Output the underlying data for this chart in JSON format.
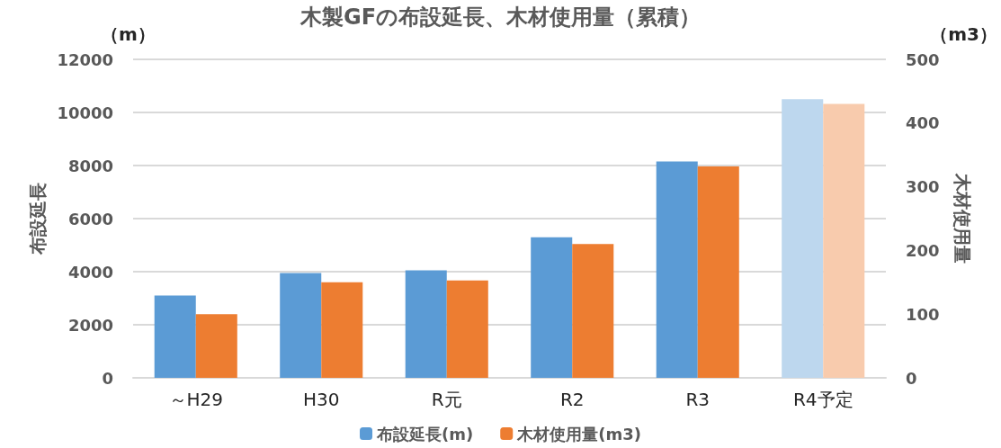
{
  "chart_data": {
    "type": "bar",
    "title": "木製GFの布設延長、木材使用量（累積）",
    "ylabel": "布設延長",
    "y2label": "木材使用量",
    "annotations": [
      "（m）",
      "（m3）"
    ],
    "categories": [
      "～H29",
      "H30",
      "R元",
      "R2",
      "R3",
      "R4予定"
    ],
    "series": [
      {
        "name": "布設延長(m)",
        "color": "#5b9bd5",
        "colors": [
          "#5b9bd5",
          "#5b9bd5",
          "#5b9bd5",
          "#5b9bd5",
          "#5b9bd5",
          "#bdd7ee"
        ],
        "values": [
          3100,
          3950,
          4050,
          5300,
          8150,
          10500
        ]
      },
      {
        "name": "木材使用量(m3)",
        "color": "#ed7d31",
        "colors": [
          "#ed7d31",
          "#ed7d31",
          "#ed7d31",
          "#ed7d31",
          "#ed7d31",
          "#f8cbad"
        ],
        "axis": "y2",
        "values": [
          100,
          150,
          153,
          210,
          332,
          430
        ]
      }
    ],
    "ylim": [
      0,
      12000
    ],
    "yticks": [
      0,
      2000,
      4000,
      6000,
      8000,
      10000,
      12000
    ],
    "y2lim": [
      0,
      500
    ],
    "y2ticks": [
      0,
      100,
      200,
      300,
      400,
      500
    ],
    "grid": "y",
    "legend": "bottom"
  }
}
